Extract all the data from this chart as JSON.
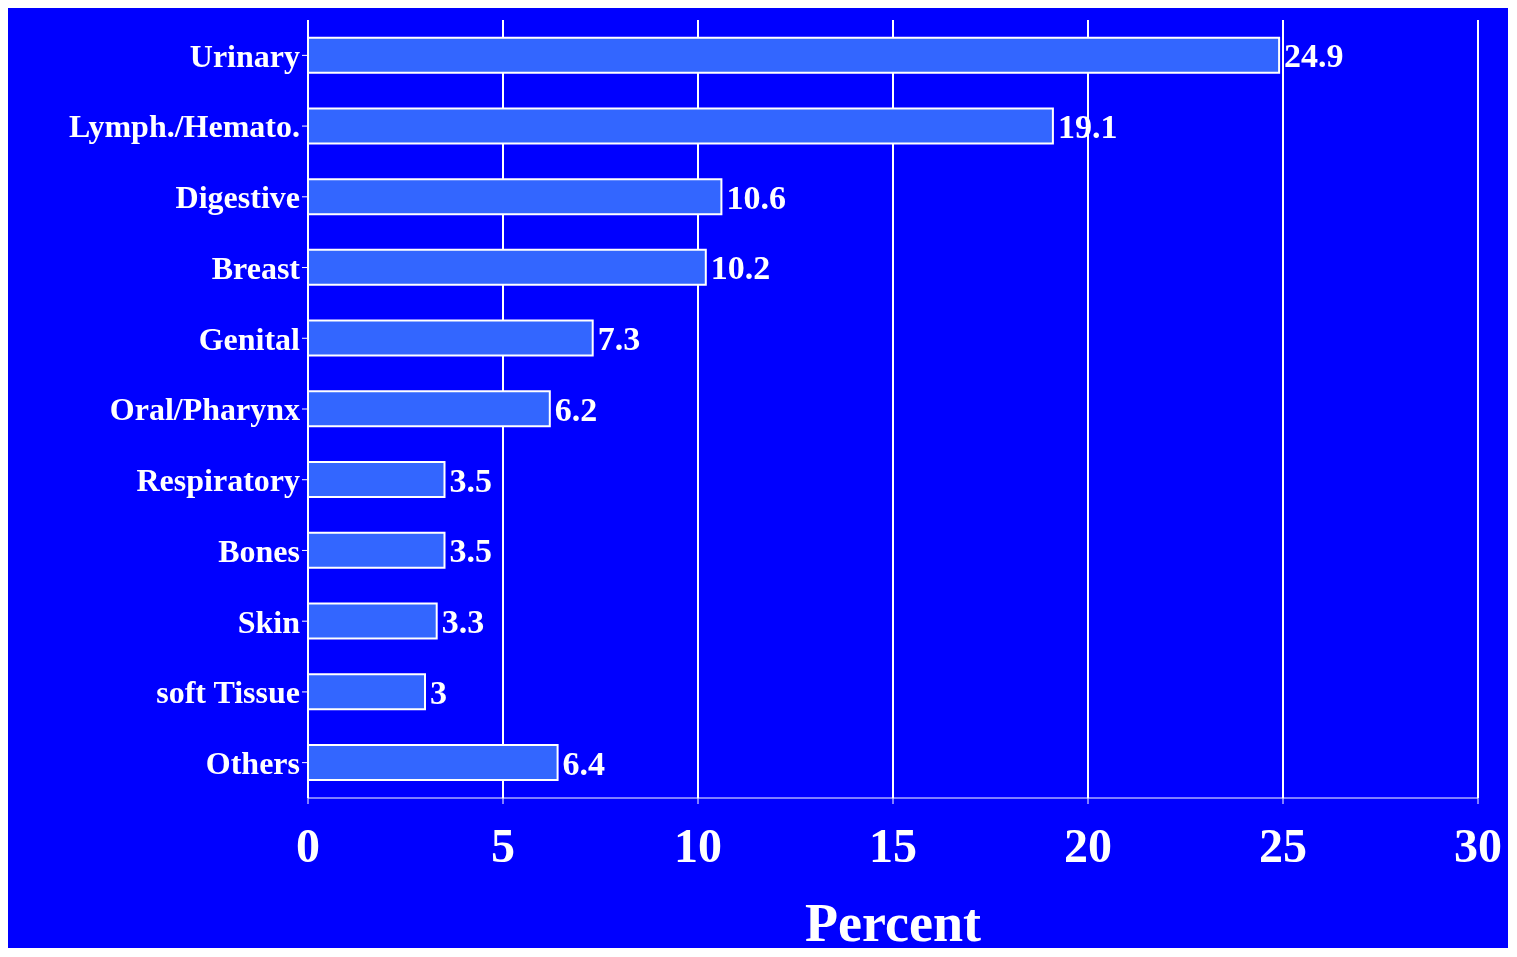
{
  "chart_data": {
    "type": "bar",
    "orientation": "horizontal",
    "categories": [
      "Urinary",
      "Lymph./Hemato.",
      "Digestive",
      "Breast",
      "Genital",
      "Oral/Pharynx",
      "Respiratory",
      "Bones",
      "Skin",
      "soft Tissue",
      "Others"
    ],
    "values": [
      24.9,
      19.1,
      10.6,
      10.2,
      7.3,
      6.2,
      3.5,
      3.5,
      3.3,
      3,
      6.4
    ],
    "color": "#3366ff",
    "xlabel": "Percent",
    "xlim": [
      0,
      30
    ],
    "xticks": [
      0,
      5,
      10,
      15,
      20,
      25,
      30
    ],
    "grid": "x",
    "data_labels": true
  }
}
